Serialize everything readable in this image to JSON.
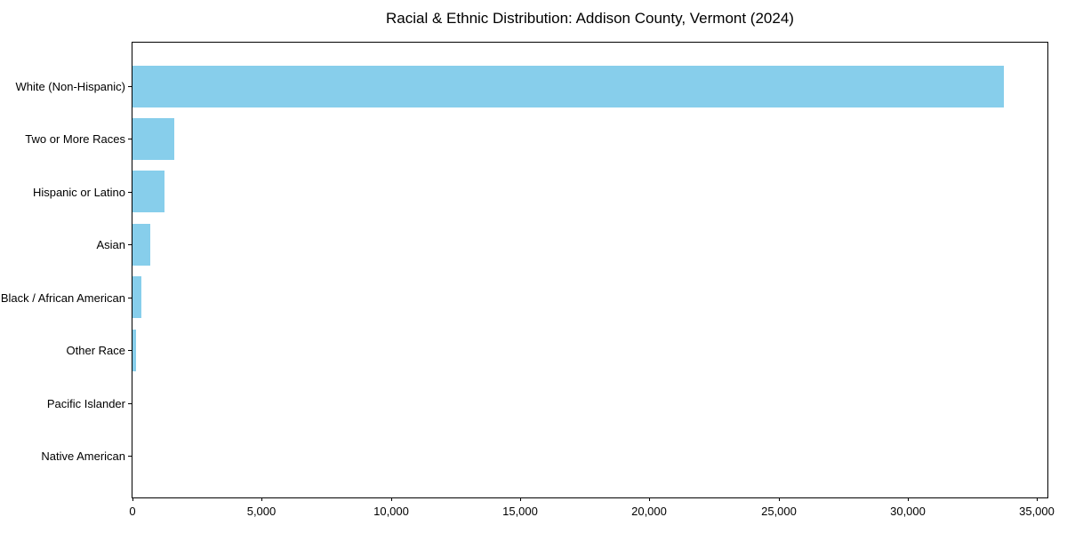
{
  "figure": {
    "background": "#ffffff"
  },
  "chart_data": {
    "type": "bar",
    "orientation": "horizontal",
    "title": "Racial & Ethnic Distribution: Addison County, Vermont (2024)",
    "categories": [
      "White (Non-Hispanic)",
      "Two or More Races",
      "Hispanic or Latino",
      "Asian",
      "Black / African American",
      "Other Race",
      "Pacific Islander",
      "Native American"
    ],
    "values": [
      33700,
      1600,
      1250,
      700,
      350,
      150,
      15,
      10
    ],
    "xlabel": "",
    "ylabel": "",
    "xlim": [
      0,
      35400
    ],
    "xticks": [
      0,
      5000,
      10000,
      15000,
      20000,
      25000,
      30000,
      35000
    ],
    "xtick_labels": [
      "0",
      "5,000",
      "10,000",
      "15,000",
      "20,000",
      "25,000",
      "30,000",
      "35,000"
    ],
    "bar_color": "#87CEEB",
    "axis_color": "#000000",
    "text_color": "#000000",
    "grid": false,
    "legend": null
  }
}
